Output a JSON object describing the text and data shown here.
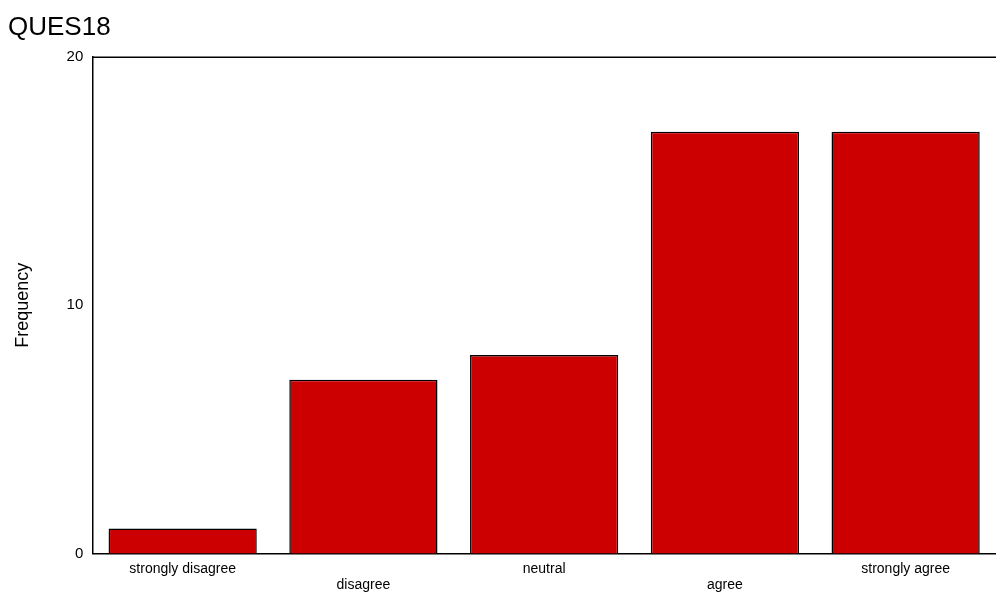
{
  "chart_data": {
    "type": "bar",
    "title": "QUES18",
    "ylabel": "Frequency",
    "categories": [
      "strongly disagree",
      "disagree",
      "neutral",
      "agree",
      "strongly agree"
    ],
    "values": [
      1,
      7,
      8,
      17,
      17
    ],
    "color": "#cc0000",
    "ylim": [
      0,
      20
    ],
    "yticks": [
      0,
      10,
      20
    ],
    "grid": false,
    "legend": false
  }
}
